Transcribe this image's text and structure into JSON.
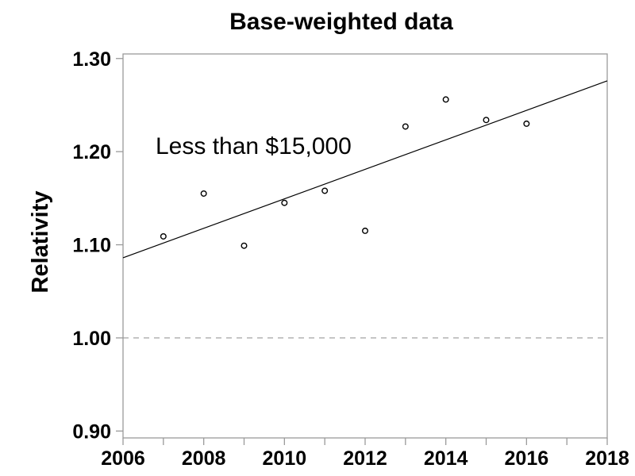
{
  "chart_data": {
    "type": "scatter",
    "title": "Base-weighted data",
    "xlabel": "",
    "ylabel": "Relativity",
    "annotation": "Less than $15,000",
    "series": [
      {
        "name": "Less than $15,000",
        "marker": "open-circle",
        "x": [
          2007,
          2008,
          2009,
          2010,
          2011,
          2012,
          2013,
          2014,
          2015,
          2016
        ],
        "values": [
          1.109,
          1.155,
          1.099,
          1.145,
          1.158,
          1.115,
          1.227,
          1.256,
          1.234,
          1.23
        ]
      }
    ],
    "trend_line": {
      "type": "linear-fit",
      "x": [
        2006,
        2018
      ],
      "values": [
        1.086,
        1.276
      ]
    },
    "reference_line": {
      "value": 1.0,
      "style": "dashed"
    },
    "xlim": [
      2006,
      2018
    ],
    "ylim": [
      0.8926,
      1.3049
    ],
    "xticks_major": [
      2006,
      2008,
      2010,
      2012,
      2014,
      2016,
      2018
    ],
    "xticks_minor": [
      2007,
      2009,
      2011,
      2013,
      2015,
      2017
    ],
    "yticks": [
      0.9,
      1.0,
      1.1,
      1.2,
      1.3
    ],
    "ytick_format_decimals": 2,
    "grid": false,
    "legend": "none",
    "colors": {
      "background": "#ffffff",
      "frame": "#9a9a9a",
      "tick": "#9a9a9a",
      "reference_line": "#999999",
      "trend_line": "#000000",
      "marker_stroke": "#000000",
      "text": "#000000"
    }
  }
}
